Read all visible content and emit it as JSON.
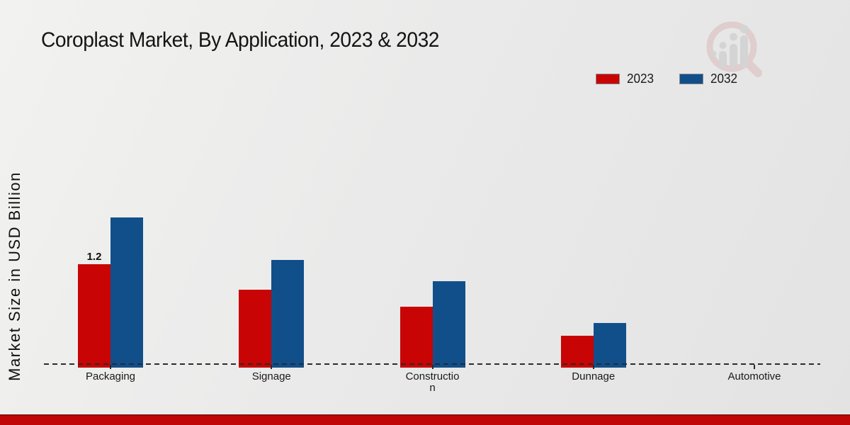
{
  "page": {
    "title": "Coroplast Market, By Application, 2023 & 2032"
  },
  "y_axis": {
    "label": "Market Size in USD Billion"
  },
  "legend": {
    "items": [
      {
        "label": "2023",
        "color": "#c80404"
      },
      {
        "label": "2032",
        "color": "#114f8b"
      }
    ]
  },
  "chart_data": {
    "type": "bar",
    "title": "Coroplast Market, By Application, 2023 & 2032",
    "xlabel": "",
    "ylabel": "Market Size in USD Billion",
    "categories": [
      "Packaging",
      "Signage",
      "Construction",
      "Dunnage",
      "Automotive"
    ],
    "series": [
      {
        "name": "2023",
        "color": "#c80404",
        "values": [
          1.2,
          0.9,
          0.7,
          0.35,
          0
        ]
      },
      {
        "name": "2032",
        "color": "#114f8b",
        "values": [
          1.75,
          1.25,
          1.0,
          0.5,
          0
        ]
      }
    ],
    "annotations": [
      {
        "series": "2023",
        "category": "Packaging",
        "text": "1.2"
      }
    ],
    "ylim": [
      0,
      2
    ],
    "grid": false,
    "y_ticks_visible": false,
    "legend_position": "top-right",
    "baseline_style": "dashed"
  },
  "icons": {
    "logo": "magnifier-growth-chart-logo"
  },
  "colors": {
    "bar_2023": "#c80404",
    "bar_2032": "#114f8b",
    "baseline": "#2b2b2b",
    "footer_red": "#c00606",
    "footer_dark_red": "#8c0f0f",
    "background": "#eaeaea",
    "logo_ring": "#dcb9b9",
    "logo_bars": "#c6c6c6"
  }
}
